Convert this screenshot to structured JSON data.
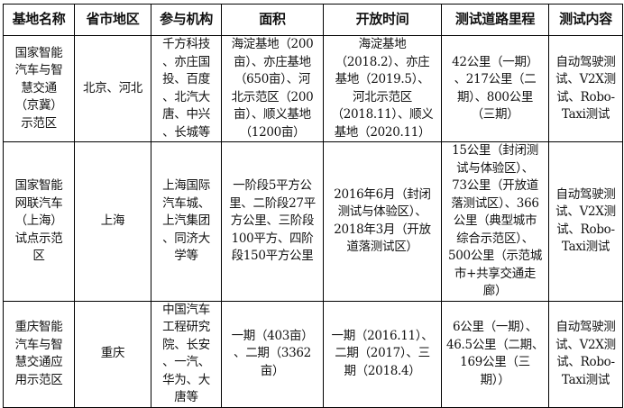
{
  "table": {
    "headers": [
      "基地名称",
      "省市地区",
      "参与机构",
      "面积",
      "开放时间",
      "测试道路里程",
      "测试内容"
    ],
    "rows": [
      {
        "name": "国家智能\n汽车与智\n慧交通\n（京冀）\n示范区",
        "region": "北京、河北",
        "orgs": "千方科技\n、亦庄国\n投、百度\n、北汽大\n唐、中兴\n、长城等",
        "area": "海淀基地（200\n亩）、亦庄基地\n（650亩）、河\n北示范区（200\n亩）、顺义基地\n（1200亩）",
        "open_time": "海淀基地\n（2018.2）、亦庄\n基地（2019.5）、\n河北示范区\n（2018.11）、顺义\n基地（2020.11）",
        "road": "42公里（一期）\n、217公里（二\n期）、800公里\n（三期）",
        "content": "自动驾驶测\n试、V2X测\n试、Robo-\nTaxi测试"
      },
      {
        "name": "国家智能\n网联汽车\n（上海）\n试点示范\n区",
        "region": "上海",
        "orgs": "上海国际\n汽车城、\n上汽集团\n、同济大\n学等",
        "area": "一阶段5平方公\n里、二阶段27平\n方公里、三阶段\n100平方、四阶\n段150平方公里",
        "open_time": "2016年6月（封闭\n测试与体验区）、\n2018年3月（开放\n道落测试区）",
        "road": "15公里（封闭测\n试与体验区）、\n73公里（开放道\n落测试区）、366\n公里（典型城市\n综合示范区）、\n500公里（示范城\n市+共享交通走\n廊）",
        "content": "自动驾驶测\n试、V2X测\n试、Robo-\nTaxi测试"
      },
      {
        "name": "重庆智能\n汽车与智\n慧交通应\n用示范区",
        "region": "重庆",
        "orgs": "中国汽车\n工程研究\n院、长安\n、一汽、\n华为、大\n唐等",
        "area": "一期（403亩）\n、二期（3362\n亩）",
        "open_time": "一期（2016.11）、\n二期（2017）、三\n期（2018.4）",
        "road": "6公里（一期）、\n46.5公里（二期、\n169公里（三\n期））",
        "content": "自动驾驶测\n试、V2X测\n试、Robo-\nTaxi测试"
      }
    ]
  }
}
